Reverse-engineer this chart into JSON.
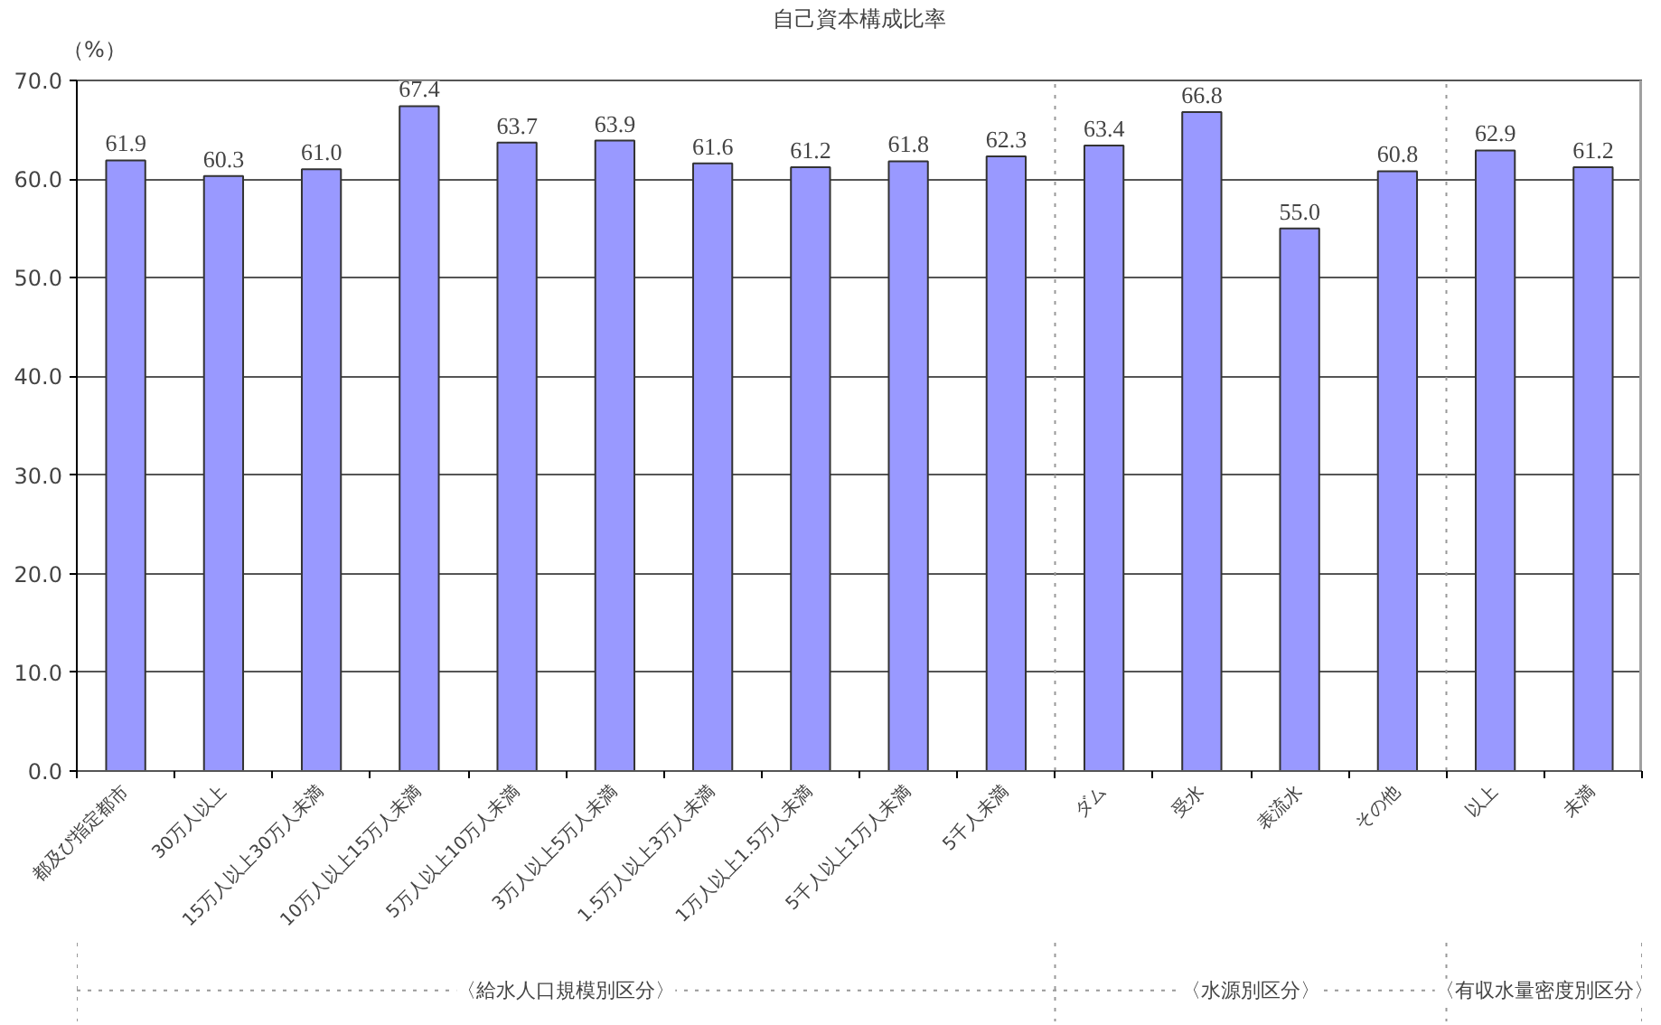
{
  "chart_data": {
    "type": "bar",
    "title": "自己資本構成比率",
    "ylabel": "（%）",
    "categories": [
      "都及び指定都市",
      "30万人以上",
      "15万人以上30万人未満",
      "10万人以上15万人未満",
      "5万人以上10万人未満",
      "3万人以上5万人未満",
      "1.5万人以上3万人未満",
      "1万人以上1.5万人未満",
      "5千人以上1万人未満",
      "5千人未満",
      "ダム",
      "受水",
      "表流水",
      "その他",
      "以上",
      "未満"
    ],
    "values": [
      61.9,
      60.3,
      61.0,
      67.4,
      63.7,
      63.9,
      61.6,
      61.2,
      61.8,
      62.3,
      63.4,
      66.8,
      55.0,
      60.8,
      62.9,
      61.2
    ],
    "value_labels": [
      "61.9",
      "60.3",
      "61.0",
      "67.4",
      "63.7",
      "63.9",
      "61.6",
      "61.2",
      "61.8",
      "62.3",
      "63.4",
      "66.8",
      "55.0",
      "60.8",
      "62.9",
      "61.2"
    ],
    "color": "#9999ff",
    "ylim": [
      0,
      70
    ],
    "yticks": [
      {
        "value": 0,
        "label": "0.0"
      },
      {
        "value": 10,
        "label": "10.0"
      },
      {
        "value": 20,
        "label": "20.0"
      },
      {
        "value": 30,
        "label": "30.0"
      },
      {
        "value": 40,
        "label": "40.0"
      },
      {
        "value": 50,
        "label": "50.0"
      },
      {
        "value": 60,
        "label": "60.0"
      },
      {
        "value": 70,
        "label": "70.0"
      }
    ],
    "grid": "y",
    "annotations": [
      "〈給水人口規模別区分〉",
      "〈水源別区分〉",
      "〈有収水量密度別区分〉"
    ]
  }
}
